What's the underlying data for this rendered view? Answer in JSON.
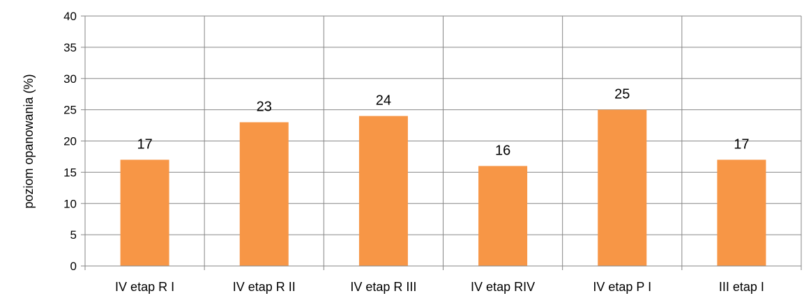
{
  "chart_data": {
    "type": "bar",
    "title": "",
    "xlabel": "",
    "ylabel": "poziom opanowania (%)",
    "categories": [
      "IV etap R I",
      "IV etap R II",
      "IV etap R III",
      "IV etap RIV",
      "IV etap P I",
      "III etap I"
    ],
    "values": [
      17,
      23,
      24,
      16,
      25,
      17
    ],
    "data_labels": [
      "17",
      "23",
      "24",
      "16",
      "25",
      "17"
    ],
    "yticks": [
      "0",
      "5",
      "10",
      "15",
      "20",
      "25",
      "30",
      "35",
      "40"
    ],
    "ylim": [
      0,
      40
    ],
    "ytick_step": 5,
    "grid": "both",
    "legend": "none",
    "colors": {
      "bar": "#f79646",
      "grid": "#868686",
      "axis": "#868686"
    }
  }
}
